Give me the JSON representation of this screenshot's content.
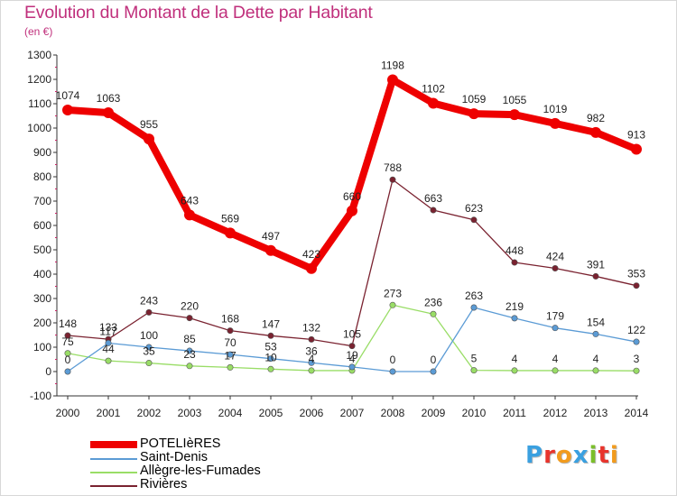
{
  "title": "Evolution du Montant de la Dette par Habitant",
  "unit_label": "(en €)",
  "chart_data": {
    "type": "line",
    "title": "Evolution du Montant de la Dette par Habitant",
    "ylabel": "(en €)",
    "xlabel": "",
    "x": [
      "2000",
      "2001",
      "2002",
      "2003",
      "2004",
      "2005",
      "2006",
      "2007",
      "2008",
      "2009",
      "2010",
      "2011",
      "2012",
      "2013",
      "2014"
    ],
    "ylim": [
      -100,
      1300
    ],
    "yticks": [
      -100,
      0,
      100,
      200,
      300,
      400,
      500,
      600,
      700,
      800,
      900,
      1000,
      1100,
      1200,
      1300
    ],
    "grid": false,
    "legend_position": "bottom-left",
    "series": [
      {
        "name": "POTELIèRES",
        "color": "#ee0000",
        "values": [
          1074,
          1063,
          955,
          643,
          569,
          497,
          423,
          660,
          1198,
          1102,
          1059,
          1055,
          1019,
          982,
          913
        ],
        "labels": [
          "1074",
          "1063",
          "955",
          "643",
          "569",
          "497",
          "423",
          "660",
          "1198",
          "1102",
          "1059",
          "1055",
          "1019",
          "982",
          "913"
        ]
      },
      {
        "name": "Saint-Denis",
        "color": "#5b9bd5",
        "values": [
          0,
          117,
          100,
          85,
          70,
          53,
          36,
          19,
          0,
          0,
          263,
          219,
          179,
          154,
          122
        ],
        "labels": [
          "0",
          "117",
          "100",
          "85",
          "70",
          "53",
          "36",
          "19",
          "0",
          "0",
          "263",
          "219",
          "179",
          "154",
          "122"
        ]
      },
      {
        "name": "Allègre-les-Fumades",
        "color": "#99dd66",
        "values": [
          75,
          44,
          35,
          23,
          17,
          10,
          4,
          4,
          273,
          236,
          5,
          4,
          4,
          4,
          3
        ],
        "labels": [
          "75",
          "44",
          "35",
          "23",
          "17",
          "10",
          "4",
          "4",
          "273",
          "236",
          "5",
          "4",
          "4",
          "4",
          "3"
        ]
      },
      {
        "name": "Rivières",
        "color": "#7a2230",
        "values": [
          148,
          133,
          243,
          220,
          168,
          147,
          132,
          105,
          788,
          663,
          623,
          448,
          424,
          391,
          353
        ],
        "labels": [
          "148",
          "133",
          "243",
          "220",
          "168",
          "147",
          "132",
          "105",
          "788",
          "663",
          "623",
          "448",
          "424",
          "391",
          "353"
        ]
      }
    ]
  },
  "logo": {
    "text": "Proxiti",
    "letters": [
      "P",
      "r",
      "o",
      "x",
      "i",
      "t",
      "i"
    ],
    "colors": [
      "#3aa0e0",
      "#e8342c",
      "#f29b1d",
      "#3aa0e0",
      "#7bbf2a",
      "#e8342c",
      "#f29b1d"
    ]
  }
}
